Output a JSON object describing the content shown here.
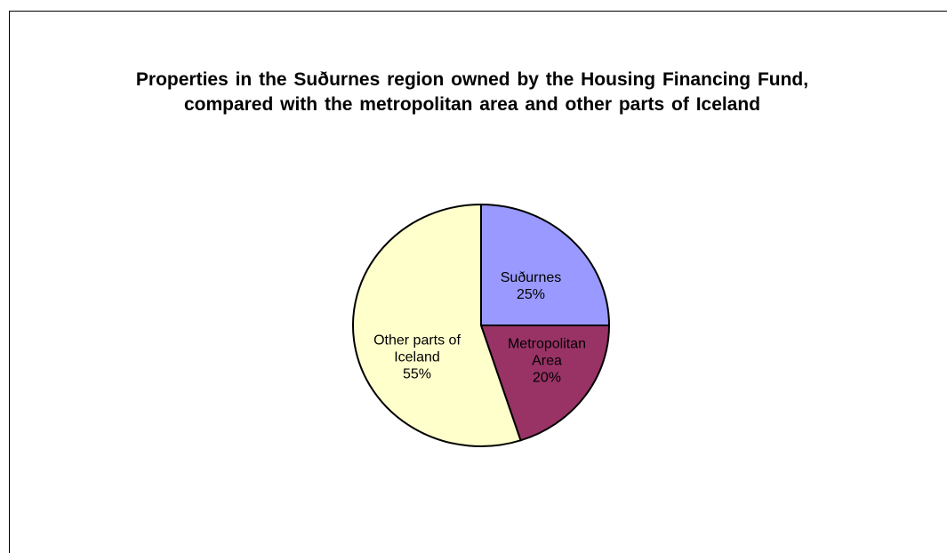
{
  "chart_data": {
    "type": "pie",
    "title": "Properties in the Suðurnes region owned by the Housing Financing Fund, compared with the metropolitan area and other parts of Iceland",
    "categories": [
      "Suðurnes",
      "Metropolitan Area",
      "Other parts of Iceland"
    ],
    "values": [
      25,
      20,
      55
    ],
    "value_labels": [
      "25%",
      "20%",
      "55%"
    ],
    "colors": [
      "#9999ff",
      "#993366",
      "#ffffcc"
    ]
  }
}
